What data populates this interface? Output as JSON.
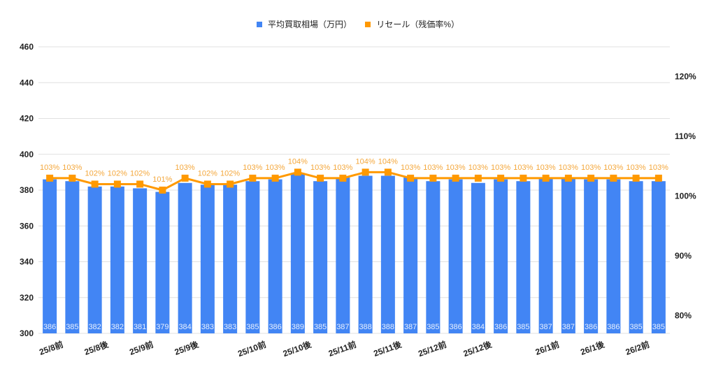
{
  "chart_data": {
    "type": "bar+line",
    "title": "",
    "legend": [
      {
        "name": "平均買取相場（万円）",
        "type": "bar",
        "color": "#4285f4"
      },
      {
        "name": "リセール（残価率%）",
        "type": "line",
        "color": "#ff9900"
      }
    ],
    "legend_position": "top",
    "x_count": 28,
    "x_tick_labels": [
      {
        "index": 1,
        "label": "25/8前"
      },
      {
        "index": 3,
        "label": "25/8後"
      },
      {
        "index": 5,
        "label": "25/9前"
      },
      {
        "index": 7,
        "label": "25/9後"
      },
      {
        "index": 10,
        "label": "25/10前"
      },
      {
        "index": 12,
        "label": "25/10後"
      },
      {
        "index": 14,
        "label": "25/11前"
      },
      {
        "index": 16,
        "label": "25/11後"
      },
      {
        "index": 18,
        "label": "25/12前"
      },
      {
        "index": 20,
        "label": "25/12後"
      },
      {
        "index": 23,
        "label": "26/1前"
      },
      {
        "index": 25,
        "label": "26/1後"
      },
      {
        "index": 27,
        "label": "26/2前"
      }
    ],
    "series": [
      {
        "name": "平均買取相場（万円）",
        "axis": "left",
        "values": [
          386,
          385,
          382,
          382,
          381,
          379,
          384,
          383,
          383,
          385,
          386,
          389,
          385,
          387,
          388,
          388,
          387,
          385,
          386,
          384,
          386,
          385,
          387,
          387,
          386,
          386,
          385,
          385
        ]
      },
      {
        "name": "リセール（残価率%）",
        "axis": "right",
        "values": [
          103,
          103,
          102,
          102,
          102,
          101,
          103,
          102,
          102,
          103,
          103,
          104,
          103,
          103,
          104,
          104,
          103,
          103,
          103,
          103,
          103,
          103,
          103,
          103,
          103,
          103,
          103,
          103
        ]
      }
    ],
    "left_axis": {
      "ylim": [
        300,
        460
      ],
      "ticks": [
        300,
        320,
        340,
        360,
        380,
        400,
        420,
        440,
        460
      ]
    },
    "right_axis": {
      "ylim": [
        77,
        125
      ],
      "ticks": [
        "80%",
        "90%",
        "100%",
        "110%",
        "120%"
      ],
      "tick_values": [
        80,
        90,
        100,
        110,
        120
      ]
    },
    "grid": true,
    "colors": {
      "bar": "#4285f4",
      "line": "#ff9900",
      "grid": "#e0e0e0",
      "bar_label": "#e8f0fe",
      "line_label": "#f4a73b"
    }
  }
}
